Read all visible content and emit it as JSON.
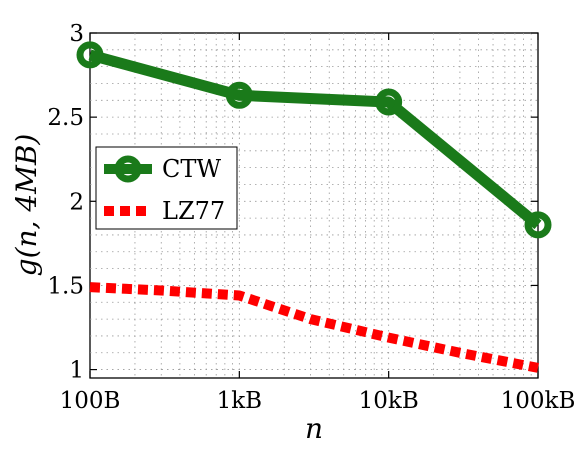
{
  "chart_data": {
    "type": "line",
    "title": "",
    "xlabel": "n",
    "ylabel": "g(n, 4MB)",
    "x_scale": "log",
    "x": [
      100,
      1000,
      10000,
      100000
    ],
    "xticks": [
      100,
      1000,
      10000,
      100000
    ],
    "xtick_labels": [
      "100B",
      "1kB",
      "10kB",
      "100kB"
    ],
    "xlim": [
      100,
      100000
    ],
    "ylim": [
      0.95,
      3.0
    ],
    "yticks": [
      1,
      1.5,
      2,
      2.5,
      3
    ],
    "ytick_labels": [
      "1",
      "1.5",
      "2",
      "2.5",
      "3"
    ],
    "grid": true,
    "legend_position": "left",
    "series": [
      {
        "name": "CTW",
        "values": [
          2.87,
          2.63,
          2.59,
          1.86
        ],
        "color": "#1a7a1a",
        "style": "solid",
        "marker": "circle"
      },
      {
        "name": "LZ77",
        "x": [
          100,
          300,
          1000,
          3000,
          10000,
          30000,
          100000
        ],
        "values": [
          1.49,
          1.47,
          1.44,
          1.3,
          1.19,
          1.1,
          1.01
        ],
        "color": "#ff0000",
        "style": "dotted",
        "marker": "none"
      }
    ]
  }
}
